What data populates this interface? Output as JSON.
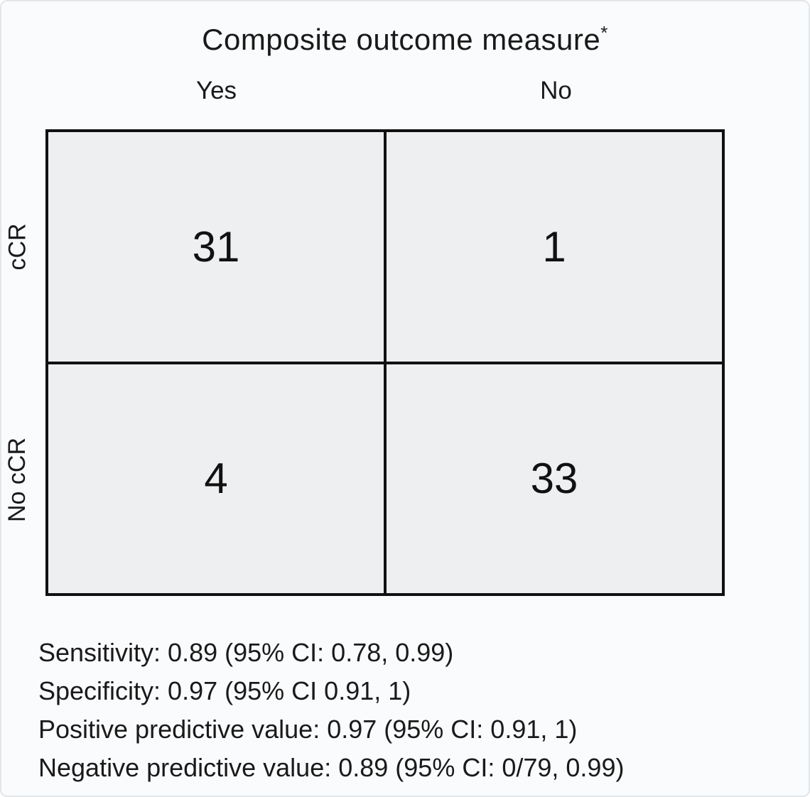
{
  "header": {
    "title": "Composite outcome measure",
    "superscript": "*"
  },
  "chart_data": {
    "type": "table",
    "subtype": "confusion_matrix",
    "title": "Composite outcome measure*",
    "column_axis_label": "Composite outcome measure*",
    "columns": [
      "Yes",
      "No"
    ],
    "rows": [
      "cCR",
      "No cCR"
    ],
    "cells": [
      [
        "31",
        "1"
      ],
      [
        "4",
        "33"
      ]
    ],
    "annotations": [
      "Sensitivity: 0.89 (95% CI: 0.78, 0.99)",
      "Specificity: 0.97 (95% CI 0.91, 1)",
      "Positive predictive value: 0.97 (95% CI: 0.91, 1)",
      "Negative predictive value: 0.89 (95% CI: 0/79, 0.99)"
    ],
    "legend_position": "none",
    "grid": "2x2 black-bordered cells"
  },
  "colors": {
    "background": "#fafbfd",
    "cell_background": "#eeeff1",
    "border": "#111111",
    "text": "#1a1a1a"
  }
}
